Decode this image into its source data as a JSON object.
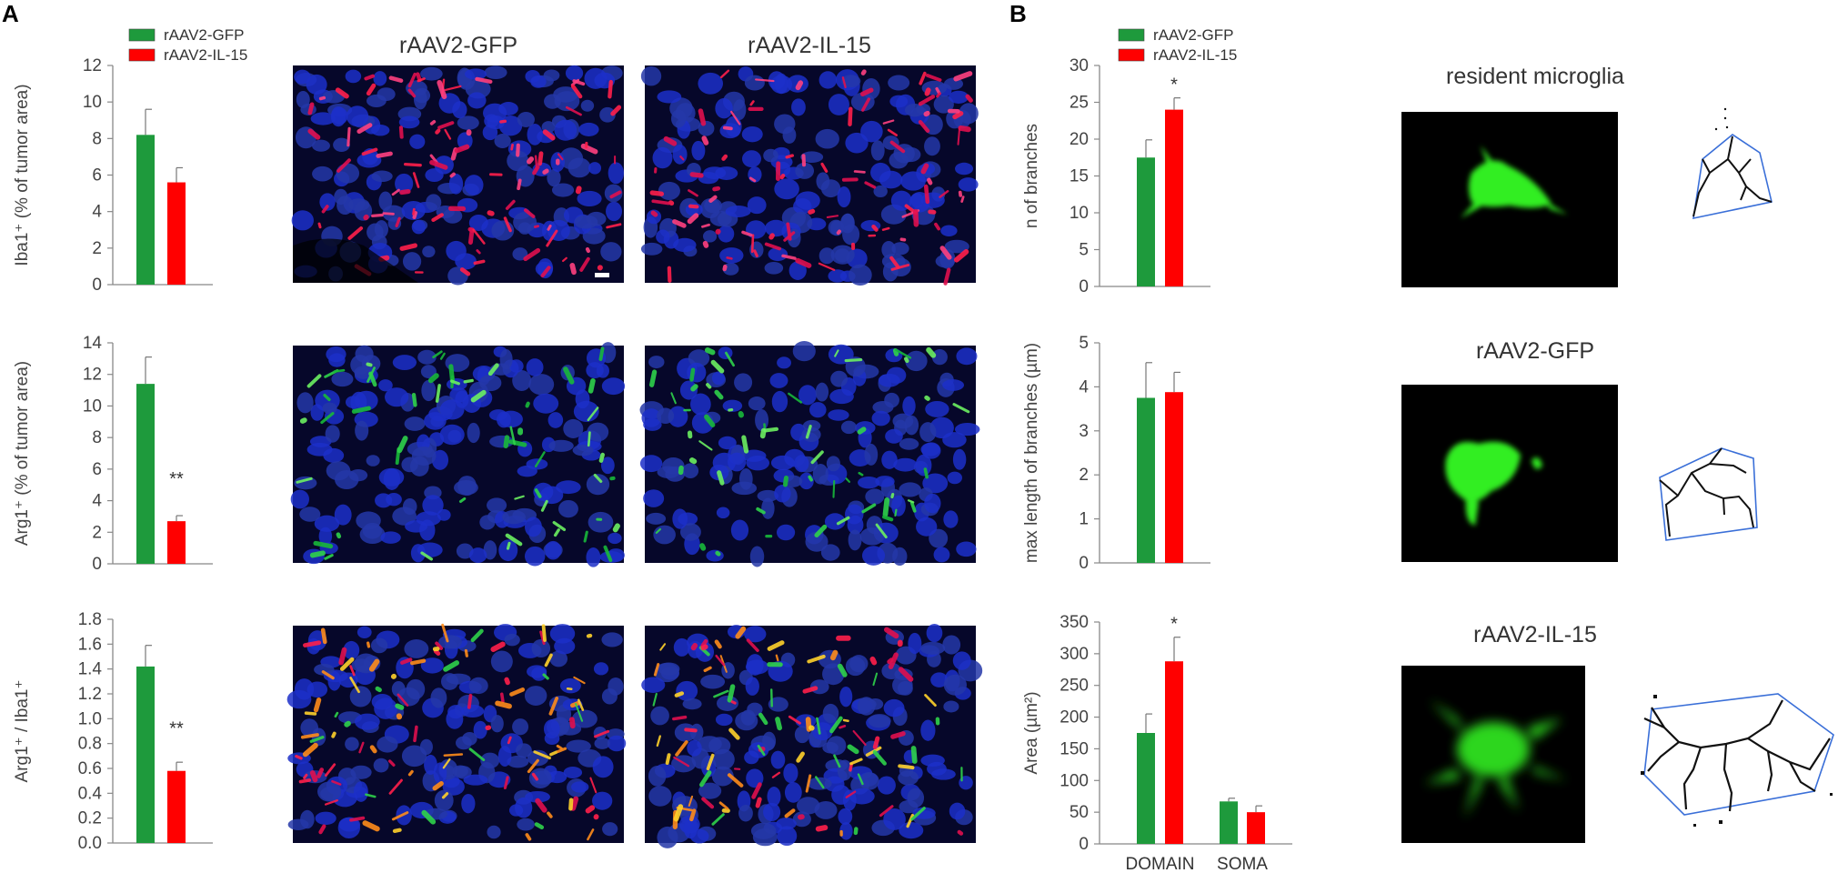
{
  "panels": {
    "a": "A",
    "b": "B"
  },
  "colors": {
    "gfp": "#1e9a3c",
    "il15": "#ff0000",
    "axis": "#888888"
  },
  "image_titles": {
    "gfp": "rAAV2-GFP",
    "il15": "rAAV2-IL-15",
    "resident": "resident microglia",
    "rgfp": "rAAV2-GFP",
    "ril15": "rAAV2-IL-15"
  },
  "images": {
    "micro_iba1_gfp": "Iba1 (red) / DAPI (blue), rAAV2-GFP",
    "micro_iba1_il15": "Iba1 (red) / DAPI (blue), rAAV2-IL-15",
    "micro_arg1_gfp": "Arg1 (green) / DAPI (blue), rAAV2-GFP",
    "micro_arg1_il15": "Arg1 (green) / DAPI (blue), rAAV2-IL-15",
    "micro_merge_gfp": "Arg1 / Iba1 merge, rAAV2-GFP",
    "micro_merge_il15": "Arg1 / Iba1 merge, rAAV2-IL-15",
    "cell_resident": "green microglia cell, resident",
    "cell_gfp": "green microglia cell, rAAV2-GFP",
    "cell_il15": "green microglia cell, rAAV2-IL-15",
    "skeleton_resident": "branch skeleton, resident",
    "skeleton_gfp": "branch skeleton, rAAV2-GFP",
    "skeleton_il15": "branch skeleton, rAAV2-IL-15"
  },
  "chart_data": [
    {
      "id": "a1",
      "type": "bar",
      "ylabel": "Iba1⁺ (% of tumor area)",
      "ylim": [
        0,
        12
      ],
      "ticks": [
        "0",
        "2",
        "4",
        "6",
        "8",
        "10",
        "12"
      ],
      "legend": [
        {
          "name": "rAAV2-GFP",
          "color": "#1e9a3c"
        },
        {
          "name": "rAAV2-IL-15",
          "color": "#ff0000"
        }
      ],
      "categories": [
        ""
      ],
      "series": [
        {
          "name": "rAAV2-GFP",
          "color": "#1e9a3c",
          "values": [
            8.2
          ],
          "errors": [
            1.4
          ],
          "marks": [
            ""
          ]
        },
        {
          "name": "rAAV2-IL-15",
          "color": "#ff0000",
          "values": [
            5.6
          ],
          "errors": [
            0.8
          ],
          "marks": [
            ""
          ]
        }
      ]
    },
    {
      "id": "a2",
      "type": "bar",
      "ylabel": "Arg1⁺ (% of tumor area)",
      "ylim": [
        0,
        14
      ],
      "ticks": [
        "0",
        "2",
        "4",
        "6",
        "8",
        "10",
        "12",
        "14"
      ],
      "legend": [],
      "categories": [
        ""
      ],
      "series": [
        {
          "name": "rAAV2-GFP",
          "color": "#1e9a3c",
          "values": [
            11.4
          ],
          "errors": [
            1.7
          ],
          "marks": [
            ""
          ]
        },
        {
          "name": "rAAV2-IL-15",
          "color": "#ff0000",
          "values": [
            2.7
          ],
          "errors": [
            0.35
          ],
          "marks": [
            "**"
          ]
        }
      ]
    },
    {
      "id": "a3",
      "type": "bar",
      "ylabel": "Arg1⁺ / Iba1⁺",
      "ylim": [
        0,
        1.8
      ],
      "ticks": [
        "0.0",
        "0.2",
        "0.4",
        "0.6",
        "0.8",
        "1.0",
        "1.2",
        "1.4",
        "1.6",
        "1.8"
      ],
      "legend": [],
      "categories": [
        ""
      ],
      "series": [
        {
          "name": "rAAV2-GFP",
          "color": "#1e9a3c",
          "values": [
            1.42
          ],
          "errors": [
            0.17
          ],
          "marks": [
            ""
          ]
        },
        {
          "name": "rAAV2-IL-15",
          "color": "#ff0000",
          "values": [
            0.58
          ],
          "errors": [
            0.07
          ],
          "marks": [
            "**"
          ]
        }
      ]
    },
    {
      "id": "b1",
      "type": "bar",
      "ylabel": "n of branches",
      "ylim": [
        0,
        30
      ],
      "ticks": [
        "0",
        "5",
        "10",
        "15",
        "20",
        "25",
        "30"
      ],
      "legend": [
        {
          "name": "rAAV2-GFP",
          "color": "#1e9a3c"
        },
        {
          "name": "rAAV2-IL-15",
          "color": "#ff0000"
        }
      ],
      "categories": [
        ""
      ],
      "series": [
        {
          "name": "rAAV2-GFP",
          "color": "#1e9a3c",
          "values": [
            17.5
          ],
          "errors": [
            2.4
          ],
          "marks": [
            ""
          ]
        },
        {
          "name": "rAAV2-IL-15",
          "color": "#ff0000",
          "values": [
            24.0
          ],
          "errors": [
            1.6
          ],
          "marks": [
            "*"
          ]
        }
      ]
    },
    {
      "id": "b2",
      "type": "bar",
      "ylabel": "max length of branches (µm)",
      "ylim": [
        0,
        5
      ],
      "ticks": [
        "0",
        "1",
        "2",
        "3",
        "4",
        "5"
      ],
      "legend": [],
      "categories": [
        ""
      ],
      "series": [
        {
          "name": "rAAV2-GFP",
          "color": "#1e9a3c",
          "values": [
            3.75
          ],
          "errors": [
            0.8
          ],
          "marks": [
            ""
          ]
        },
        {
          "name": "rAAV2-IL-15",
          "color": "#ff0000",
          "values": [
            3.88
          ],
          "errors": [
            0.45
          ],
          "marks": [
            ""
          ]
        }
      ]
    },
    {
      "id": "b3",
      "type": "bar",
      "ylabel": "Area (µm²)",
      "ylim": [
        0,
        350
      ],
      "ticks": [
        "0",
        "50",
        "100",
        "150",
        "200",
        "250",
        "300",
        "350"
      ],
      "legend": [],
      "categories": [
        "DOMAIN",
        "SOMA"
      ],
      "series": [
        {
          "name": "rAAV2-GFP",
          "color": "#1e9a3c",
          "values": [
            175,
            67
          ],
          "errors": [
            30,
            5
          ],
          "marks": [
            "",
            ""
          ]
        },
        {
          "name": "rAAV2-IL-15",
          "color": "#ff0000",
          "values": [
            288,
            50
          ],
          "errors": [
            38,
            10
          ],
          "marks": [
            "*",
            ""
          ]
        }
      ]
    }
  ]
}
